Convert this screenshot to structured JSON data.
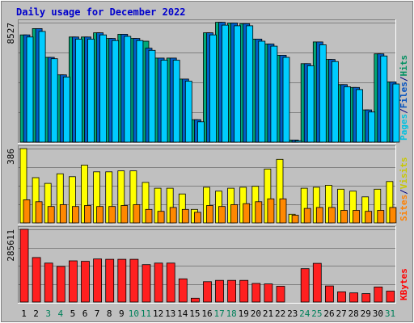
{
  "chart_data": [
    {
      "type": "bar",
      "title": "Daily usage for December 2022",
      "colors": {
        "page_background": "#c0c0c0",
        "title": "#0000cc",
        "panel_background": "#c0c0c0"
      },
      "ytick": "8527",
      "ylim": [
        0,
        8527
      ],
      "legend": [
        {
          "label": "Pages",
          "color": "#00c0e0"
        },
        {
          "label": "/",
          "color": "#000080"
        },
        {
          "label": "Files",
          "color": "#0050c0"
        },
        {
          "label": "/",
          "color": "#000080"
        },
        {
          "label": "Hits",
          "color": "#009060"
        }
      ],
      "categories": [
        "1",
        "2",
        "3",
        "4",
        "5",
        "6",
        "7",
        "8",
        "9",
        "10",
        "11",
        "12",
        "13",
        "14",
        "15",
        "16",
        "17",
        "18",
        "19",
        "20",
        "21",
        "22",
        "23",
        "24",
        "25",
        "26",
        "27",
        "28",
        "29",
        "30",
        "31"
      ],
      "series": [
        {
          "name": "Hits",
          "color": "#00a878",
          "values": [
            7650,
            8100,
            6050,
            4800,
            7500,
            7500,
            7800,
            7400,
            7700,
            7400,
            7200,
            6000,
            6000,
            4500,
            1600,
            7800,
            8550,
            8500,
            8450,
            7350,
            7000,
            6200,
            150,
            5600,
            7150,
            5900,
            4100,
            3900,
            2300,
            6300,
            4300
          ]
        },
        {
          "name": "Files",
          "color": "#0060c8",
          "values": [
            7650,
            8100,
            6050,
            4800,
            7500,
            7500,
            7800,
            7400,
            7700,
            7400,
            6700,
            6000,
            6000,
            4500,
            1600,
            7800,
            8550,
            8500,
            8450,
            7350,
            7000,
            6200,
            150,
            5600,
            7150,
            5900,
            4100,
            3900,
            2300,
            6300,
            4300
          ]
        },
        {
          "name": "Pages",
          "color": "#00ccff",
          "values": [
            7500,
            7900,
            5950,
            4650,
            7350,
            7350,
            7650,
            7250,
            7550,
            7250,
            6550,
            5850,
            5850,
            4350,
            1450,
            7650,
            8350,
            8300,
            8300,
            7200,
            6850,
            6050,
            100,
            5450,
            6950,
            5750,
            3950,
            3750,
            2150,
            6150,
            4150
          ]
        }
      ]
    },
    {
      "type": "bar",
      "ytick": "386",
      "ylim": [
        0,
        386
      ],
      "legend": [
        {
          "label": "Sites",
          "color": "#ff8000"
        },
        {
          "label": "/",
          "color": "#000080"
        },
        {
          "label": "Visits",
          "color": "#c8c800"
        }
      ],
      "categories": [
        "1",
        "2",
        "3",
        "4",
        "5",
        "6",
        "7",
        "8",
        "9",
        "10",
        "11",
        "12",
        "13",
        "14",
        "15",
        "16",
        "17",
        "18",
        "19",
        "20",
        "21",
        "22",
        "23",
        "24",
        "25",
        "26",
        "27",
        "28",
        "29",
        "30",
        "31"
      ],
      "series": [
        {
          "name": "Visits",
          "color": "#ffff00",
          "values": [
            386,
            235,
            205,
            255,
            240,
            300,
            265,
            265,
            270,
            270,
            210,
            180,
            180,
            150,
            70,
            185,
            165,
            180,
            185,
            190,
            280,
            330,
            45,
            180,
            185,
            195,
            175,
            165,
            135,
            175,
            215
          ]
        },
        {
          "name": "Sites",
          "color": "#ff8800",
          "values": [
            120,
            110,
            85,
            95,
            85,
            90,
            85,
            85,
            90,
            95,
            70,
            60,
            80,
            70,
            55,
            90,
            85,
            95,
            100,
            110,
            125,
            125,
            40,
            75,
            80,
            80,
            65,
            65,
            60,
            65,
            80
          ]
        }
      ]
    },
    {
      "type": "bar",
      "ytick": "285611",
      "ylim": [
        0,
        285611
      ],
      "legend": [
        {
          "label": "KBytes",
          "color": "#ff0000"
        }
      ],
      "categories": [
        "1",
        "2",
        "3",
        "4",
        "5",
        "6",
        "7",
        "8",
        "9",
        "10",
        "11",
        "12",
        "13",
        "14",
        "15",
        "16",
        "17",
        "18",
        "19",
        "20",
        "21",
        "22",
        "23",
        "24",
        "25",
        "26",
        "27",
        "28",
        "29",
        "30",
        "31"
      ],
      "series": [
        {
          "name": "KBytes",
          "color": "#ff2020",
          "values": [
            285611,
            175000,
            153000,
            140000,
            162000,
            160000,
            169000,
            168000,
            168000,
            168000,
            147000,
            153000,
            153000,
            91000,
            15000,
            80000,
            85000,
            85000,
            85000,
            73000,
            71000,
            62000,
            0,
            131000,
            152000,
            63000,
            40000,
            36000,
            33000,
            59000,
            43000
          ]
        }
      ]
    }
  ],
  "x_axis": {
    "labels": [
      "1",
      "2",
      "3",
      "4",
      "5",
      "6",
      "7",
      "8",
      "9",
      "10",
      "11",
      "12",
      "13",
      "14",
      "15",
      "16",
      "17",
      "18",
      "19",
      "20",
      "21",
      "22",
      "23",
      "24",
      "25",
      "26",
      "27",
      "28",
      "29",
      "30",
      "31"
    ],
    "weekend_indices": [
      2,
      3,
      9,
      10,
      16,
      17,
      23,
      24,
      30
    ],
    "weekday_color": "#000000",
    "weekend_color": "#00805a"
  }
}
